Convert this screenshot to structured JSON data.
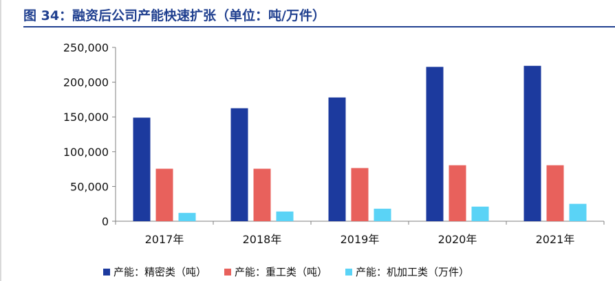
{
  "title": "图 34：融资后公司产能快速扩张（单位：吨/万件）",
  "colors": {
    "title": "#1f3f8f",
    "series": [
      "#1c3a9e",
      "#e8615c",
      "#5ad3f6"
    ]
  },
  "chart_data": {
    "type": "bar",
    "categories": [
      "2017年",
      "2018年",
      "2019年",
      "2020年",
      "2021年"
    ],
    "series": [
      {
        "name": "产能：精密类（吨）",
        "values": [
          149000,
          162500,
          178000,
          222000,
          223500
        ]
      },
      {
        "name": "产能：重工类（吨）",
        "values": [
          75500,
          75500,
          76500,
          80500,
          80500
        ]
      },
      {
        "name": "产能：机加工类（万件）",
        "values": [
          12000,
          14000,
          18000,
          21000,
          25000
        ]
      }
    ],
    "ylim": [
      0,
      250000
    ],
    "yticks": [
      0,
      50000,
      100000,
      150000,
      200000,
      250000
    ],
    "ytick_labels": [
      "0",
      "50,000",
      "100,000",
      "150,000",
      "200,000",
      "250,000"
    ],
    "grid": false,
    "legend_position": "bottom"
  }
}
